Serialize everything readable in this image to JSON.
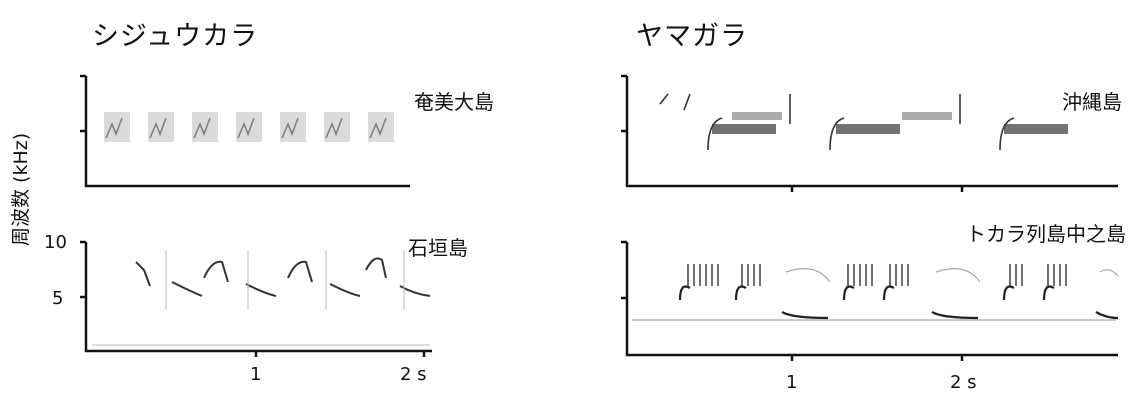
{
  "figure": {
    "y_axis_label": "周波数 (kHz)",
    "y_ticks": [
      "10",
      "5"
    ],
    "x_ticks": [
      "1",
      "2 s"
    ]
  },
  "columns": [
    {
      "species": "シジュウカラ"
    },
    {
      "species": "ヤマガラ"
    }
  ],
  "panels": [
    {
      "place": "奄美大島"
    },
    {
      "place": "石垣島"
    },
    {
      "place": "沖縄島"
    },
    {
      "place": "トカラ列島中之島"
    }
  ]
}
